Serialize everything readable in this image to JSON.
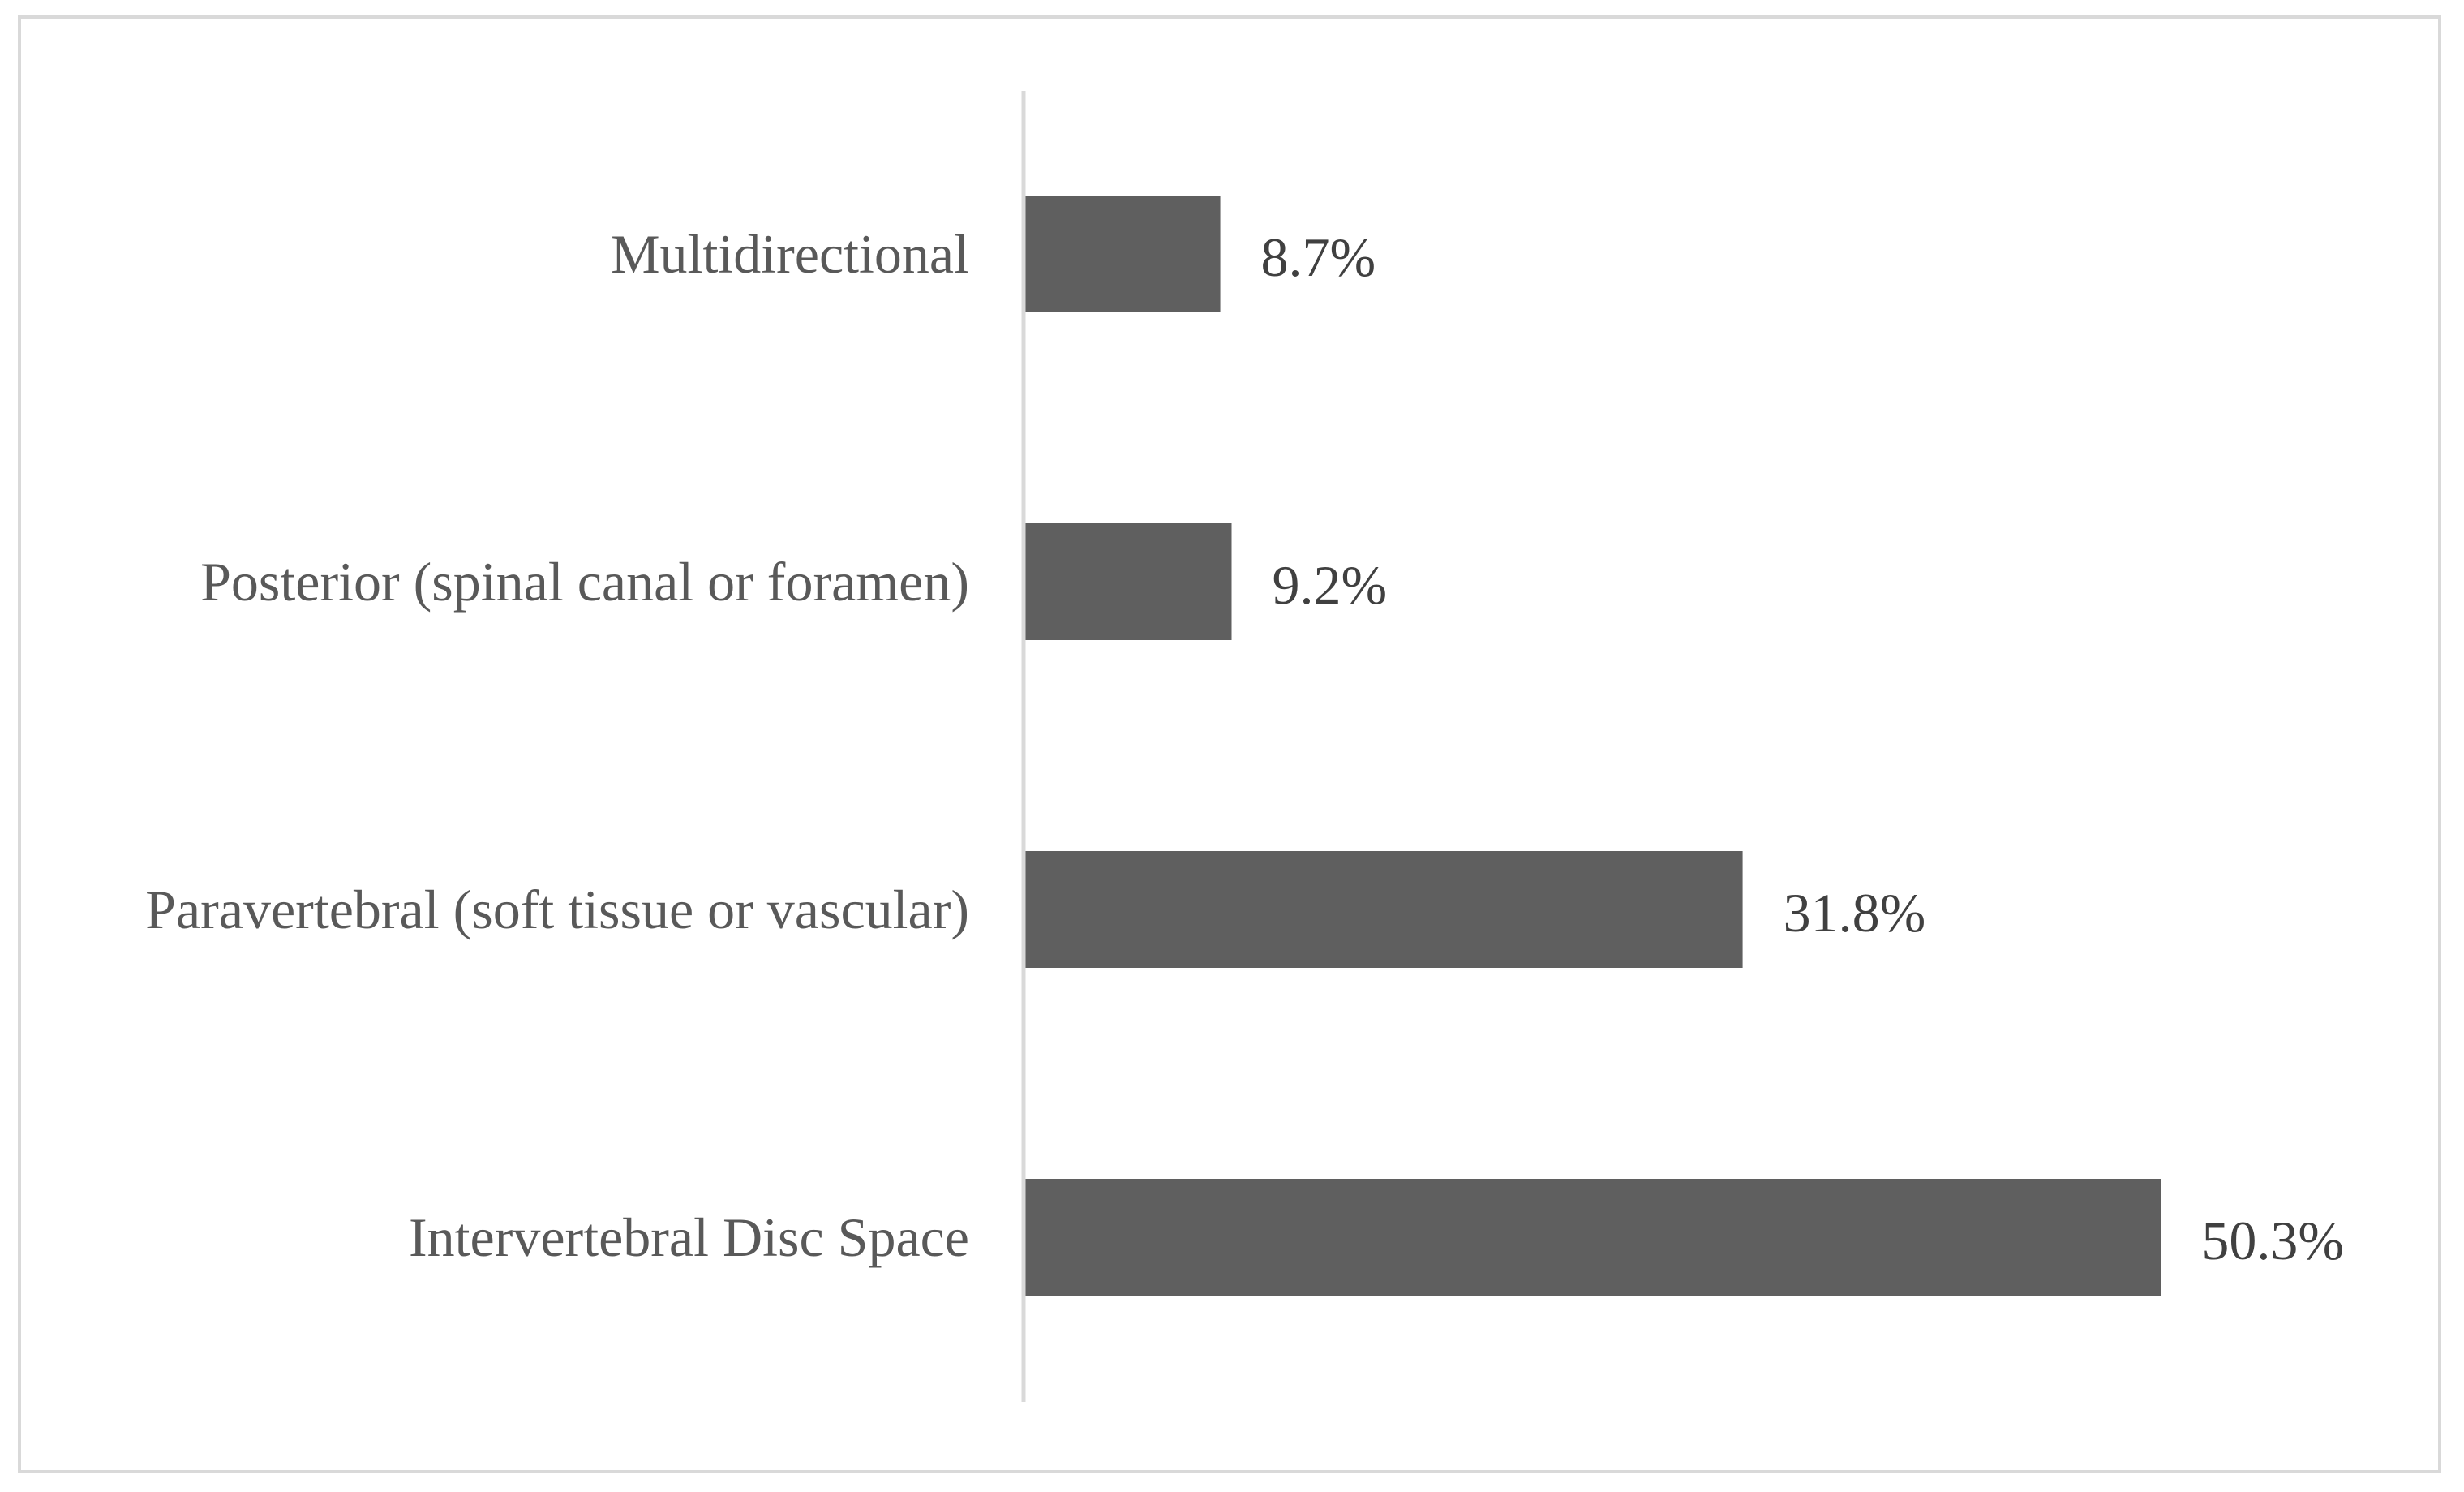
{
  "chart_data": {
    "type": "bar",
    "orientation": "horizontal",
    "categories": [
      "Multidirectional",
      "Posterior (spinal canal or foramen)",
      "Paravertebral (soft tissue or vascular)",
      "Intervertebral Disc Space"
    ],
    "values": [
      8.7,
      9.2,
      31.8,
      50.3
    ],
    "value_labels": [
      "8.7%",
      "9.2%",
      "31.8%",
      "50.3%"
    ],
    "unit": "%",
    "title": "",
    "xlabel": "",
    "ylabel": "",
    "xlim": [
      0,
      60
    ],
    "grid": false,
    "legend": "none",
    "bar_color": "#5f5f5f",
    "axis_color": "#d9d9d9",
    "category_text_color": "#595959",
    "value_text_color": "#404040"
  }
}
